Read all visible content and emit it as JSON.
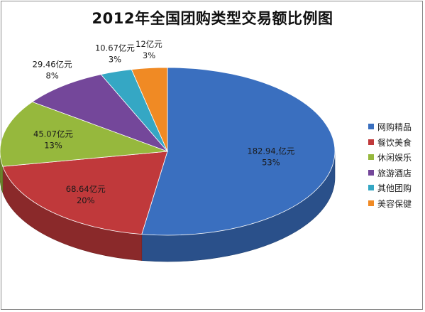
{
  "chart_data": {
    "type": "pie",
    "title": "2012年全国团购类型交易额比例图",
    "categories": [
      "网购精品",
      "餐饮美食",
      "休闲娱乐",
      "旅游酒店",
      "其他团购",
      "美容保健"
    ],
    "values": [
      182.94,
      68.64,
      45.07,
      29.46,
      10.67,
      12
    ],
    "value_labels": [
      "182.94,亿元",
      "68.64亿元",
      "45.07亿元",
      "29.46亿元",
      "10.67亿元",
      "12亿元"
    ],
    "percent_labels": [
      "53%",
      "20%",
      "13%",
      "8%",
      "3%",
      "3%"
    ],
    "colors": [
      "#3a6fbf",
      "#c0393b",
      "#96b83d",
      "#74479a",
      "#35a7c4",
      "#f08a24"
    ],
    "style": "3d",
    "legend_position": "right"
  }
}
